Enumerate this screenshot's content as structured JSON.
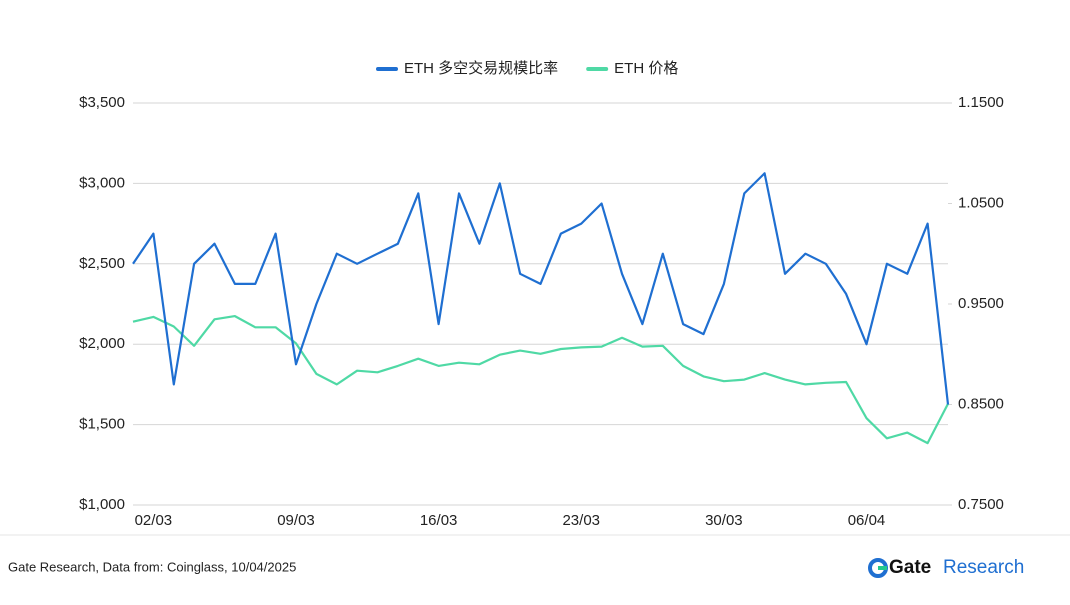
{
  "chart_data": {
    "type": "line",
    "categories": [
      null,
      "02/03",
      null,
      null,
      null,
      null,
      null,
      null,
      "09/03",
      null,
      null,
      null,
      null,
      null,
      null,
      "16/03",
      null,
      null,
      null,
      null,
      null,
      null,
      "23/03",
      null,
      null,
      null,
      null,
      null,
      null,
      "30/03",
      null,
      null,
      null,
      null,
      null,
      null,
      "06/04",
      null,
      null,
      null,
      null
    ],
    "series": [
      {
        "name": "ETH 多空交易规模比率",
        "color": "#1f6fd1",
        "axis": "y2",
        "values": [
          0.99,
          1.02,
          0.87,
          0.99,
          1.01,
          0.97,
          0.97,
          1.02,
          0.89,
          0.95,
          1.0,
          0.99,
          1.0,
          1.01,
          1.06,
          0.93,
          1.06,
          1.01,
          1.07,
          0.98,
          0.97,
          1.02,
          1.03,
          1.05,
          0.98,
          0.93,
          1.0,
          0.93,
          0.92,
          0.97,
          1.06,
          1.08,
          0.98,
          1.0,
          0.99,
          0.96,
          0.91,
          0.99,
          0.98,
          1.03,
          0.85
        ]
      },
      {
        "name": "ETH  价格",
        "color": "#4fd9a5",
        "values": [
          2140,
          2170,
          2110,
          1990,
          2155,
          2175,
          2105,
          2105,
          2005,
          1815,
          1750,
          1835,
          1825,
          1865,
          1910,
          1865,
          1885,
          1875,
          1935,
          1960,
          1940,
          1970,
          1980,
          1985,
          2040,
          1985,
          1990,
          1865,
          1800,
          1770,
          1780,
          1820,
          1780,
          1750,
          1760,
          1765,
          1540,
          1415,
          1450,
          1385,
          1630
        ]
      }
    ],
    "ylim": [
      1000,
      3500
    ],
    "yticks": [
      {
        "value": 1000,
        "label": "$1,000"
      },
      {
        "value": 1500,
        "label": "$1,500"
      },
      {
        "value": 2000,
        "label": "$2,000"
      },
      {
        "value": 2500,
        "label": "$2,500"
      },
      {
        "value": 3000,
        "label": "$3,000"
      },
      {
        "value": 3500,
        "label": "$3,500"
      }
    ],
    "y2lim": [
      0.75,
      1.15
    ],
    "y2ticks": [
      {
        "value": 0.75,
        "label": "0.7500"
      },
      {
        "value": 0.85,
        "label": "0.8500"
      },
      {
        "value": 0.95,
        "label": "0.9500"
      },
      {
        "value": 1.05,
        "label": "1.0500"
      },
      {
        "value": 1.15,
        "label": "1.1500"
      }
    ],
    "grid": true,
    "legend": "top"
  },
  "footer": {
    "source": "Gate Research, Data from: Coinglass, 10/04/2025",
    "logo_bold": "Gate",
    "logo_light": "Research"
  }
}
